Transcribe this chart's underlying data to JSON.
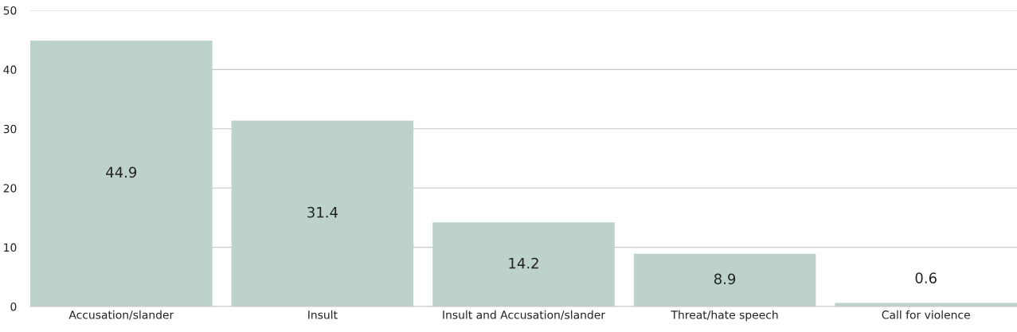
{
  "chart_data": {
    "type": "bar",
    "categories": [
      "Accusation/slander",
      "Insult",
      "Insult and Accusation/slander",
      "Threat/hate speech",
      "Call for violence"
    ],
    "values": [
      44.9,
      31.4,
      14.2,
      8.9,
      0.6
    ],
    "color": "#bdd3c9",
    "ylim": [
      0,
      50
    ],
    "yticks": [
      0,
      10,
      20,
      30,
      40,
      50
    ],
    "grid": "y",
    "data_labels": true
  }
}
